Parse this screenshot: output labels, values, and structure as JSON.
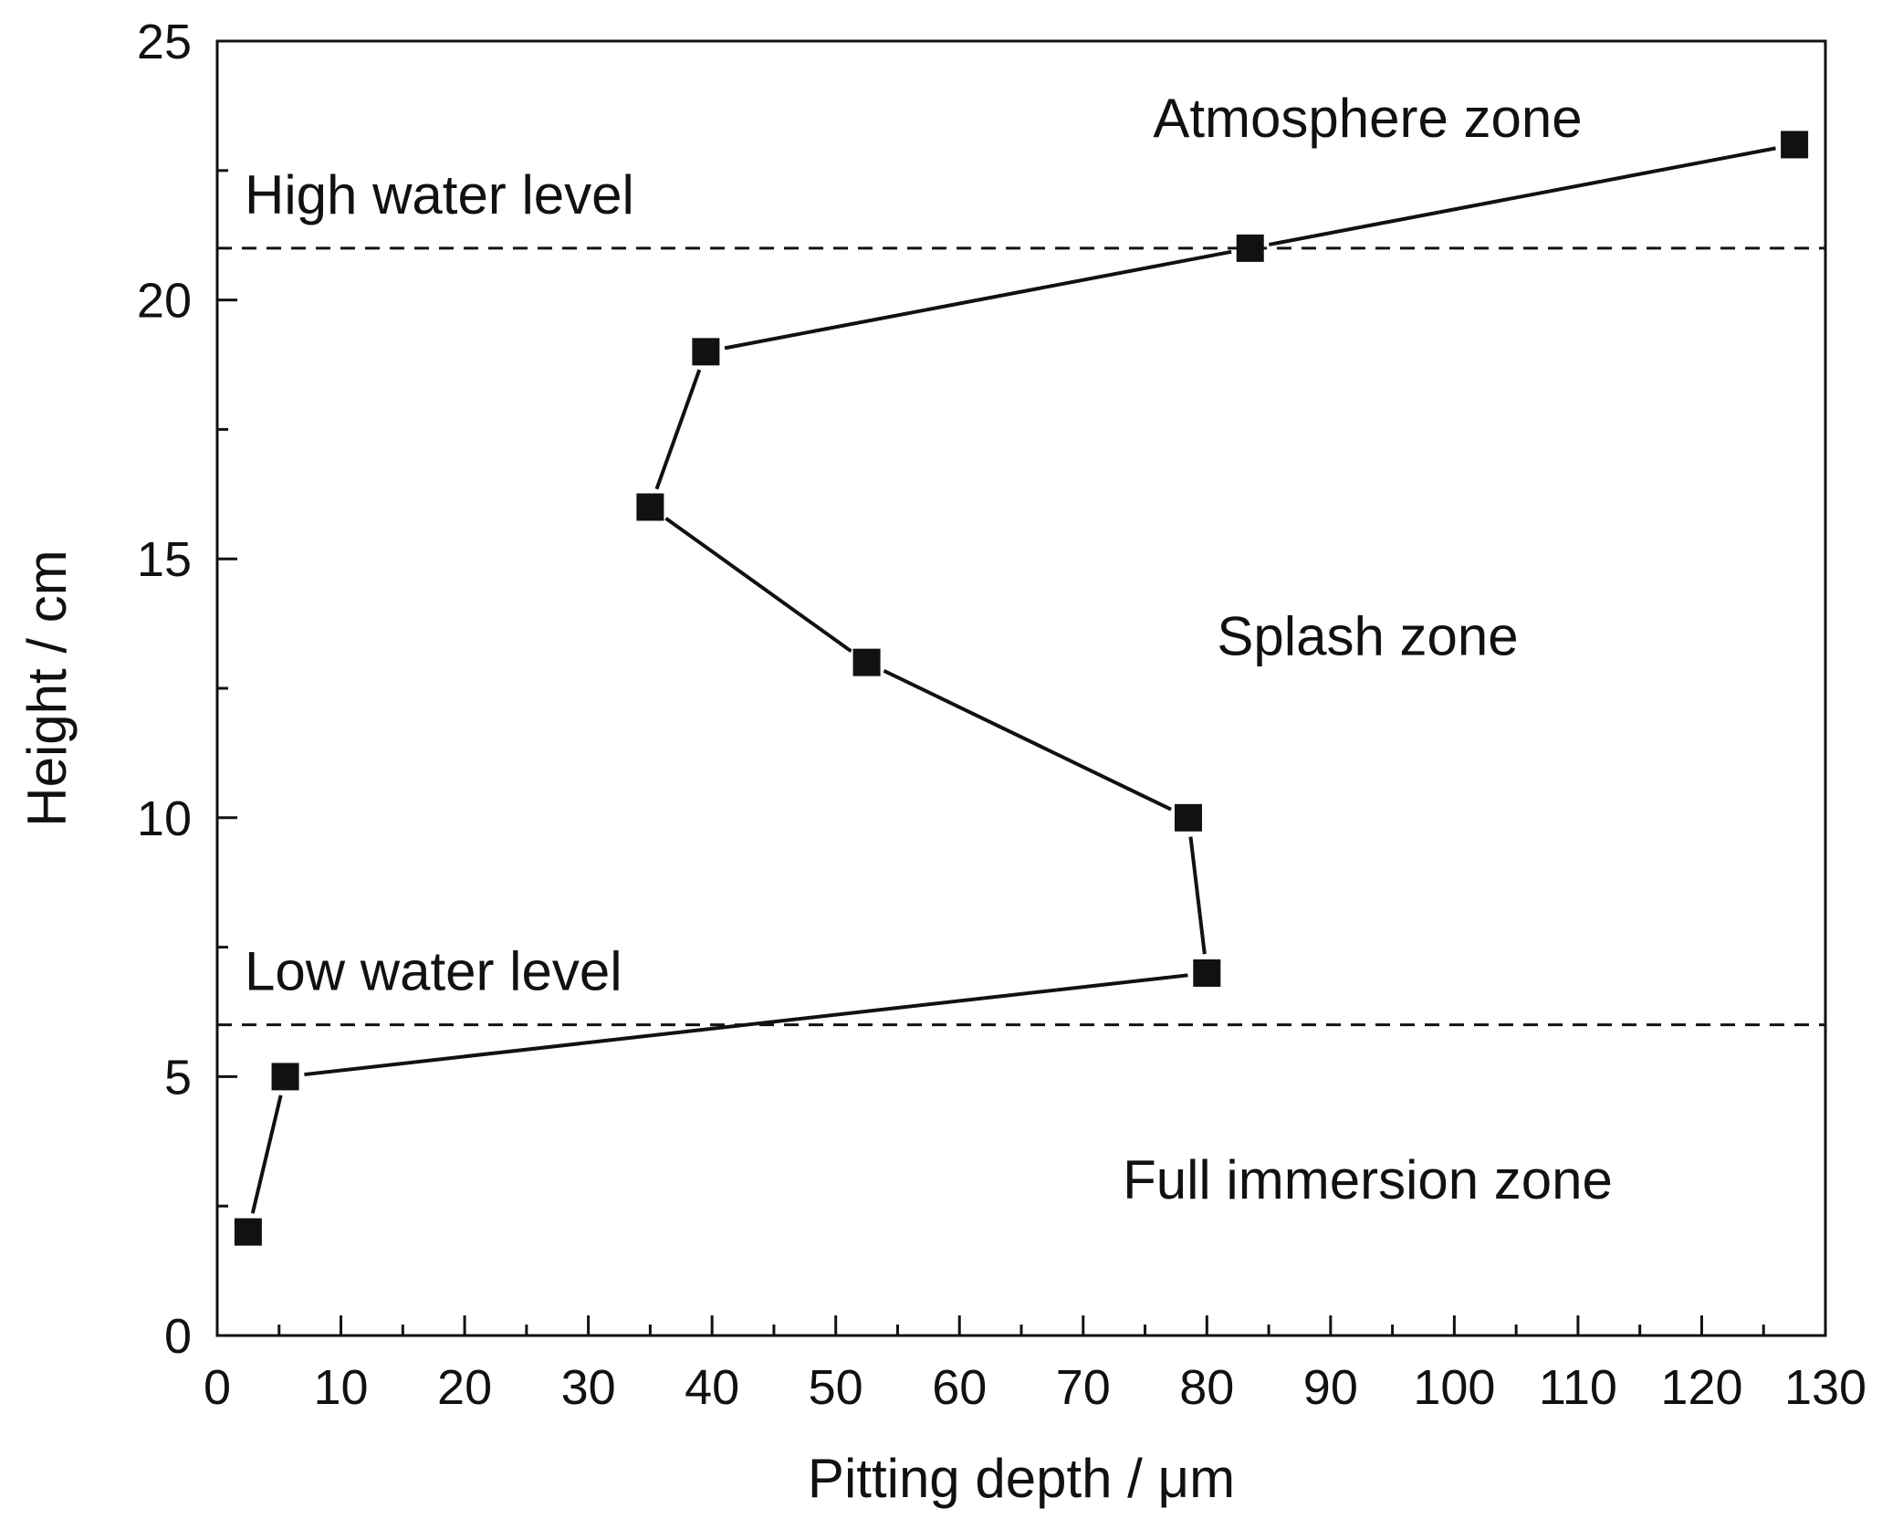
{
  "chart_data": {
    "type": "line",
    "xlabel": "Pitting depth / μm",
    "ylabel": "Height / cm",
    "xlim": [
      0,
      130
    ],
    "ylim": [
      0,
      25
    ],
    "x_major_ticks": [
      0,
      10,
      20,
      30,
      40,
      50,
      60,
      70,
      80,
      90,
      100,
      110,
      120,
      130
    ],
    "x_tick_labels": [
      "0",
      "10",
      "20",
      "30",
      "40",
      "50",
      "60",
      "70",
      "80",
      "90",
      "100",
      "110",
      "120",
      "130"
    ],
    "y_major_ticks": [
      0,
      5,
      10,
      15,
      20,
      25
    ],
    "y_tick_labels": [
      "0",
      "5",
      "10",
      "15",
      "20",
      "25"
    ],
    "grid": false,
    "marker": "square",
    "series": [
      {
        "x": [
          2.5,
          5.5,
          80.0,
          78.5,
          52.5,
          35.0,
          39.5,
          83.5,
          127.5
        ],
        "y": [
          2,
          5,
          7,
          10,
          13,
          16,
          19,
          21,
          23
        ]
      }
    ],
    "reference_lines": [
      {
        "orientation": "horizontal",
        "y": 21,
        "style": "dashed",
        "label": "High water level"
      },
      {
        "orientation": "horizontal",
        "y": 6,
        "style": "dashed",
        "label": "Low water level"
      }
    ],
    "annotations": [
      {
        "text": "Atmosphere zone",
        "x": 93,
        "y": 23.5
      },
      {
        "text": "Splash zone",
        "x": 93,
        "y": 13.5
      },
      {
        "text": "Full immersion zone",
        "x": 93,
        "y": 3
      }
    ],
    "colors": {
      "line": "#111111",
      "marker": "#111111",
      "axis": "#111111",
      "background": "#ffffff"
    }
  }
}
